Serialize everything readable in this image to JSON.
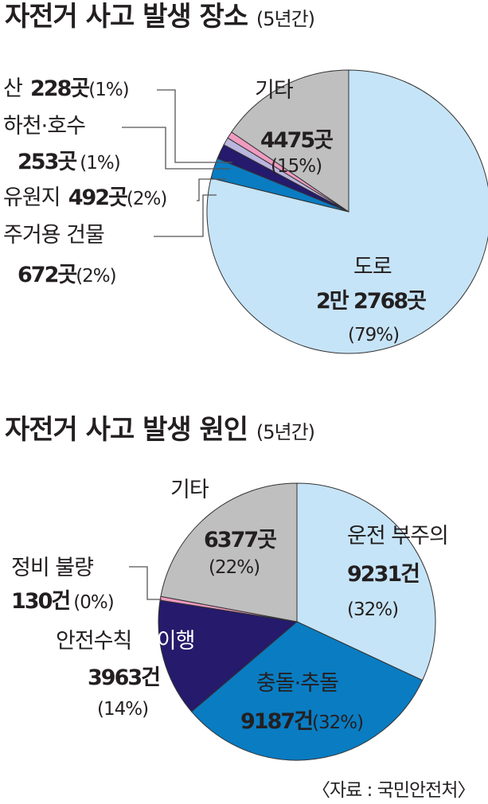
{
  "chart_data": [
    {
      "type": "pie",
      "title": "자전거 사고 발생 장소",
      "subtitle": "(5년간)",
      "slices": [
        {
          "label": "도로",
          "value_text": "2만 2768곳",
          "value": 22768,
          "pct_text": "(79%)",
          "percent": 79,
          "color": "#c6e4f7"
        },
        {
          "label": "주거용 건물",
          "value_text": "672곳",
          "value": 672,
          "pct_text": "(2%)",
          "percent": 2,
          "color": "#0a7cc2"
        },
        {
          "label": "유원지",
          "value_text": "492곳",
          "value": 492,
          "pct_text": "(2%)",
          "percent": 2,
          "color": "#251a6b"
        },
        {
          "label": "하천·호수",
          "value_text": "253곳",
          "value": 253,
          "pct_text": "(1%)",
          "percent": 1,
          "color": "#bab6dd"
        },
        {
          "label": "산",
          "value_text": "228곳",
          "value": 228,
          "pct_text": "(1%)",
          "percent": 1,
          "color": "#f09bc1"
        },
        {
          "label": "기타",
          "value_text": "4475곳",
          "value": 4475,
          "pct_text": "(15%)",
          "percent": 15,
          "color": "#bfbfbf"
        }
      ]
    },
    {
      "type": "pie",
      "title": "자전거 사고 발생 원인",
      "subtitle": "(5년간)",
      "slices": [
        {
          "label": "운전 부주의",
          "value_text": "9231건",
          "value": 9231,
          "pct_text": "(32%)",
          "percent": 32,
          "color": "#c6e4f7"
        },
        {
          "label": "충돌·추돌",
          "value_text": "9187건",
          "value": 9187,
          "pct_text": "(32%)",
          "percent": 32,
          "color": "#0a7cc2"
        },
        {
          "label": "안전수칙 불이행",
          "value_text": "3963건",
          "value": 3963,
          "pct_text": "(14%)",
          "percent": 14,
          "color": "#251a6b"
        },
        {
          "label": "정비 불량",
          "value_text": "130건",
          "value": 130,
          "pct_text": "(0%)",
          "percent": 0,
          "color": "#f09bc1"
        },
        {
          "label": "기타",
          "value_text": "6377곳",
          "value": 6377,
          "pct_text": "(22%)",
          "percent": 22,
          "color": "#bfbfbf"
        }
      ]
    }
  ],
  "source": "〈자료 : 국민안전처〉",
  "label_parts": {
    "safety_a": "안전수칙 ",
    "safety_b": "불이행"
  }
}
